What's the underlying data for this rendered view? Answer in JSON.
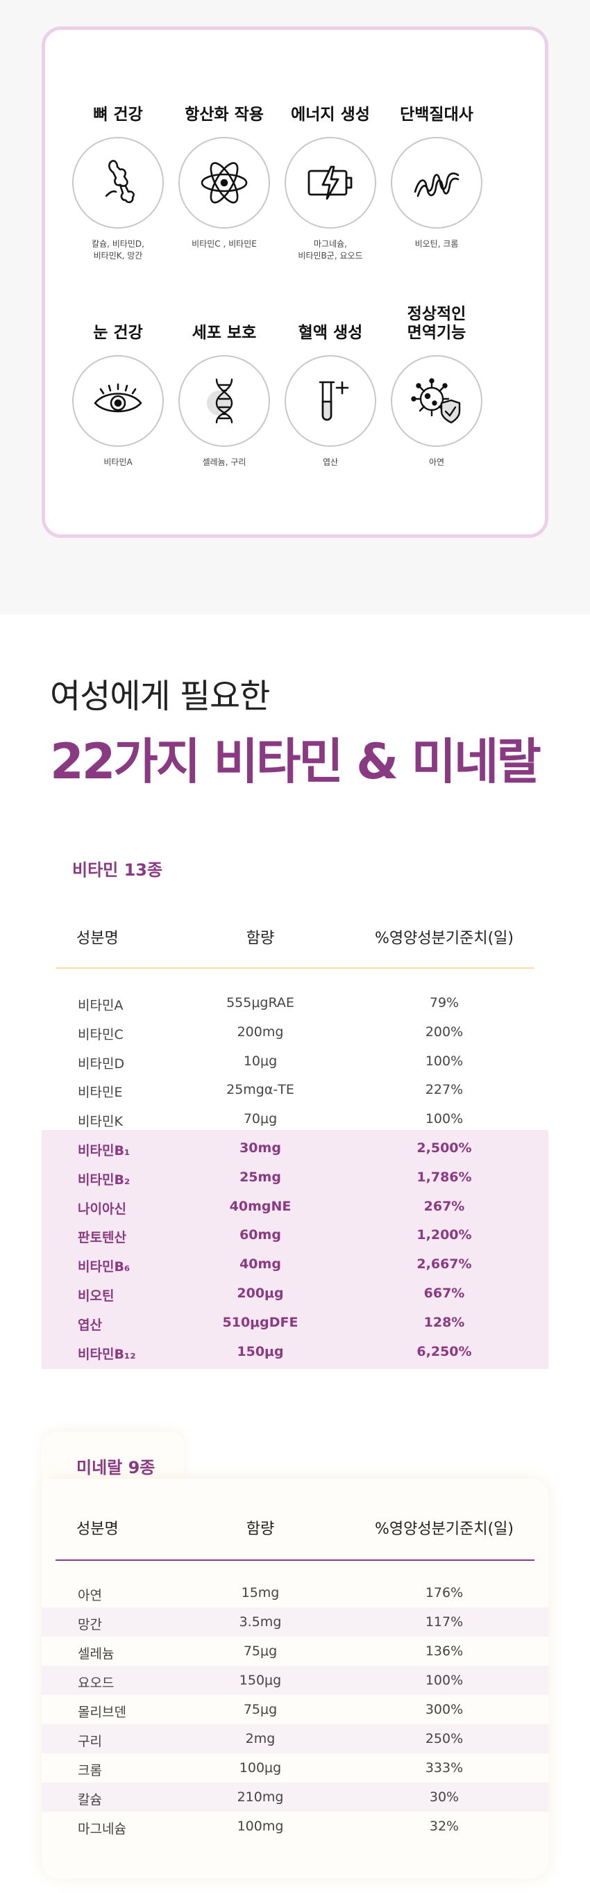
{
  "benefits": [
    {
      "title": "뼈 건강",
      "icon": "bone-joint-icon",
      "desc": "칼슘, 비타민D,\n비타민K, 망간"
    },
    {
      "title": "항산화 작용",
      "icon": "atom-icon",
      "desc": "비타민C , 비타민E"
    },
    {
      "title": "에너지 생성",
      "icon": "battery-bolt-icon",
      "desc": "마그네슘,\n비타민B군, 요오드"
    },
    {
      "title": "단백질대사",
      "icon": "protein-chain-icon",
      "desc": "비오틴, 크롬"
    },
    {
      "title": "눈 건강",
      "icon": "eye-icon",
      "desc": "비타민A"
    },
    {
      "title": "세포 보호",
      "icon": "dna-icon",
      "desc": "셀레늄, 구리"
    },
    {
      "title": "혈액 생성",
      "icon": "test-tube-icon",
      "desc": "엽산"
    },
    {
      "title": "정상적인\n면역기능",
      "icon": "virus-shield-icon",
      "desc": "아연"
    }
  ],
  "headline": {
    "sub": "여성에게 필요한",
    "main": "22가지 비타민 & 미네랄"
  },
  "columns": {
    "name": "성분명",
    "amount": "함량",
    "percent": "%영양성분기준치(일)"
  },
  "vitamins": {
    "title": "비타민 13종",
    "rows": [
      {
        "name": "비타민A",
        "amount": "555μgRAE",
        "percent": "79%",
        "hl": false
      },
      {
        "name": "비타민C",
        "amount": "200mg",
        "percent": "200%",
        "hl": false
      },
      {
        "name": "비타민D",
        "amount": "10μg",
        "percent": "100%",
        "hl": false
      },
      {
        "name": "비타민E",
        "amount": "25mgα-TE",
        "percent": "227%",
        "hl": false
      },
      {
        "name": "비타민K",
        "amount": "70μg",
        "percent": "100%",
        "hl": false
      },
      {
        "name": "비타민B₁",
        "amount": "30mg",
        "percent": "2,500%",
        "hl": true
      },
      {
        "name": "비타민B₂",
        "amount": "25mg",
        "percent": "1,786%",
        "hl": true
      },
      {
        "name": "나이아신",
        "amount": "40mgNE",
        "percent": "267%",
        "hl": true
      },
      {
        "name": "판토텐산",
        "amount": "60mg",
        "percent": "1,200%",
        "hl": true
      },
      {
        "name": "비타민B₆",
        "amount": "40mg",
        "percent": "2,667%",
        "hl": true
      },
      {
        "name": "비오틴",
        "amount": "200μg",
        "percent": "667%",
        "hl": true
      },
      {
        "name": "엽산",
        "amount": "510μgDFE",
        "percent": "128%",
        "hl": true
      },
      {
        "name": "비타민B₁₂",
        "amount": "150μg",
        "percent": "6,250%",
        "hl": true
      }
    ]
  },
  "minerals": {
    "title": "미네랄 9종",
    "rows": [
      {
        "name": "아연",
        "amount": "15mg",
        "percent": "176%",
        "shade": false
      },
      {
        "name": "망간",
        "amount": "3.5mg",
        "percent": "117%",
        "shade": true
      },
      {
        "name": "셀레늄",
        "amount": "75μg",
        "percent": "136%",
        "shade": false
      },
      {
        "name": "요오드",
        "amount": "150μg",
        "percent": "100%",
        "shade": true
      },
      {
        "name": "몰리브덴",
        "amount": "75μg",
        "percent": "300%",
        "shade": false
      },
      {
        "name": "구리",
        "amount": "2mg",
        "percent": "250%",
        "shade": true
      },
      {
        "name": "크롬",
        "amount": "100μg",
        "percent": "333%",
        "shade": false
      },
      {
        "name": "칼슘",
        "amount": "210mg",
        "percent": "30%",
        "shade": true
      },
      {
        "name": "마그네슘",
        "amount": "100mg",
        "percent": "32%",
        "shade": false
      }
    ]
  },
  "colors": {
    "accent": "#8a3a82",
    "highlight_bg": "#f6e9f3",
    "card_border": "#ecd0e8",
    "vitamin_rule": "#f2e2a8",
    "mineral_rule": "#8a3a82"
  }
}
